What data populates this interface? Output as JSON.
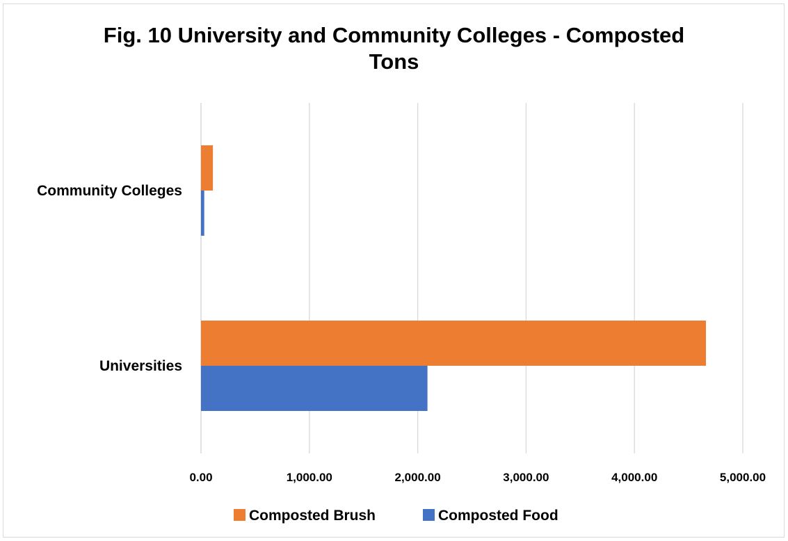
{
  "chart_data": {
    "type": "bar",
    "orientation": "horizontal",
    "title": "Fig. 10 University and Community Colleges - Composted Tons",
    "title_lines": [
      "Fig. 10 University and Community Colleges - Composted",
      "Tons"
    ],
    "categories": [
      "Community Colleges",
      "Universities"
    ],
    "series": [
      {
        "name": "Composted Brush",
        "color": "#ED7D31",
        "values": [
          110,
          4660
        ]
      },
      {
        "name": "Composted Food",
        "color": "#4472C4",
        "values": [
          30,
          2090
        ]
      }
    ],
    "xlim": [
      0,
      5000
    ],
    "x_ticks": [
      0,
      1000,
      2000,
      3000,
      4000,
      5000
    ],
    "x_tick_labels": [
      "0.00",
      "1,000.00",
      "2,000.00",
      "3,000.00",
      "4,000.00",
      "5,000.00"
    ],
    "grid": true,
    "legend_position": "bottom",
    "legend": [
      {
        "label": "Composted Brush",
        "color": "#ED7D31"
      },
      {
        "label": "Composted Food",
        "color": "#4472C4"
      }
    ]
  }
}
